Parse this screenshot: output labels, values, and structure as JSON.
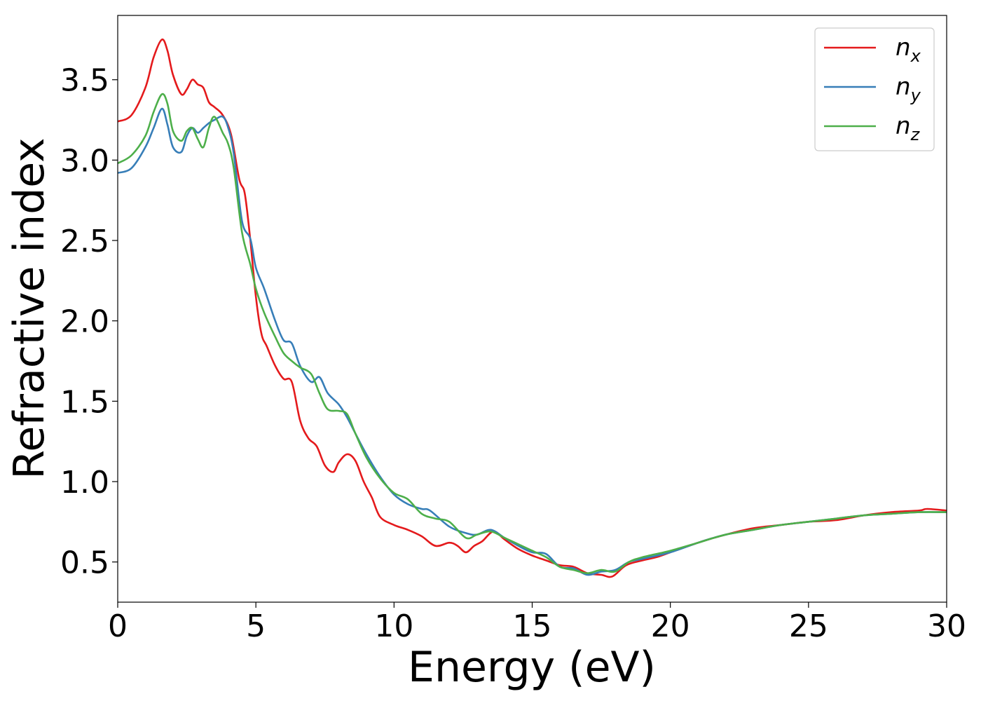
{
  "chart_data": {
    "type": "line",
    "title": "",
    "xlabel": "Energy (eV)",
    "ylabel": "Refractive index",
    "xlim": [
      0,
      30
    ],
    "ylim": [
      0.25,
      3.9
    ],
    "xticks": [
      0,
      5,
      10,
      15,
      20,
      25,
      30
    ],
    "xtick_labels": [
      "0",
      "5",
      "10",
      "15",
      "20",
      "25",
      "30"
    ],
    "yticks": [
      0.5,
      1.0,
      1.5,
      2.0,
      2.5,
      3.0,
      3.5
    ],
    "ytick_labels": [
      "0.5",
      "1.0",
      "1.5",
      "2.0",
      "2.5",
      "3.0",
      "3.5"
    ],
    "grid": false,
    "legend_position": "top-right",
    "series": [
      {
        "name": "n",
        "sub": "x",
        "color": "#e41a1c",
        "x": [
          0,
          0.5,
          1,
          1.3,
          1.6,
          1.8,
          2,
          2.3,
          2.5,
          2.7,
          2.9,
          3.1,
          3.3,
          3.5,
          3.8,
          4.1,
          4.4,
          4.6,
          4.8,
          5,
          5.2,
          5.4,
          5.7,
          6,
          6.3,
          6.6,
          6.9,
          7.2,
          7.5,
          7.8,
          8,
          8.3,
          8.6,
          8.9,
          9.2,
          9.5,
          10,
          10.5,
          11,
          11.5,
          12,
          12.3,
          12.6,
          12.9,
          13.2,
          13.6,
          14,
          14.5,
          15,
          15.5,
          16,
          16.5,
          17,
          17.5,
          17.9,
          18.4,
          19,
          19.5,
          20,
          21,
          22,
          23,
          24,
          25,
          26,
          27,
          28,
          29,
          29.3,
          30
        ],
        "y": [
          3.24,
          3.28,
          3.45,
          3.64,
          3.75,
          3.68,
          3.53,
          3.41,
          3.44,
          3.5,
          3.47,
          3.45,
          3.36,
          3.33,
          3.28,
          3.16,
          2.88,
          2.79,
          2.5,
          2.15,
          1.92,
          1.84,
          1.72,
          1.64,
          1.62,
          1.38,
          1.27,
          1.22,
          1.1,
          1.06,
          1.12,
          1.17,
          1.13,
          1.0,
          0.9,
          0.78,
          0.73,
          0.7,
          0.66,
          0.6,
          0.62,
          0.6,
          0.56,
          0.6,
          0.63,
          0.69,
          0.64,
          0.58,
          0.54,
          0.51,
          0.48,
          0.47,
          0.43,
          0.42,
          0.41,
          0.48,
          0.51,
          0.53,
          0.56,
          0.62,
          0.67,
          0.71,
          0.73,
          0.75,
          0.76,
          0.79,
          0.81,
          0.82,
          0.83,
          0.82
        ]
      },
      {
        "name": "n",
        "sub": "y",
        "color": "#377eb8",
        "x": [
          0,
          0.5,
          1,
          1.3,
          1.6,
          1.8,
          2,
          2.3,
          2.5,
          2.7,
          2.9,
          3.1,
          3.3,
          3.5,
          3.8,
          4,
          4.2,
          4.5,
          4.8,
          5,
          5.3,
          5.7,
          6,
          6.3,
          6.6,
          7,
          7.3,
          7.6,
          8,
          8.3,
          8.6,
          9,
          9.5,
          10,
          10.5,
          11,
          11.3,
          12,
          12.6,
          13,
          13.5,
          14,
          14.5,
          15,
          15.5,
          16,
          16.5,
          17,
          17.5,
          18,
          18.5,
          19,
          20,
          21,
          22,
          23,
          24,
          25,
          26,
          27,
          28,
          29,
          30
        ],
        "y": [
          2.92,
          2.95,
          3.08,
          3.2,
          3.32,
          3.22,
          3.08,
          3.05,
          3.15,
          3.2,
          3.17,
          3.2,
          3.23,
          3.25,
          3.27,
          3.2,
          3.04,
          2.62,
          2.51,
          2.33,
          2.2,
          2.0,
          1.88,
          1.86,
          1.72,
          1.62,
          1.65,
          1.55,
          1.48,
          1.4,
          1.3,
          1.17,
          1.03,
          0.92,
          0.86,
          0.83,
          0.82,
          0.72,
          0.68,
          0.67,
          0.7,
          0.65,
          0.6,
          0.56,
          0.55,
          0.47,
          0.46,
          0.42,
          0.44,
          0.45,
          0.5,
          0.52,
          0.56,
          0.62,
          0.67,
          0.7,
          0.73,
          0.75,
          0.77,
          0.79,
          0.8,
          0.81,
          0.81
        ]
      },
      {
        "name": "n",
        "sub": "z",
        "color": "#4daf4a",
        "x": [
          0,
          0.5,
          1,
          1.3,
          1.6,
          1.8,
          2,
          2.3,
          2.5,
          2.7,
          2.9,
          3.1,
          3.3,
          3.5,
          3.8,
          4,
          4.2,
          4.5,
          4.8,
          5,
          5.3,
          5.7,
          6,
          6.3,
          6.6,
          7,
          7.3,
          7.6,
          8,
          8.3,
          8.6,
          9,
          9.5,
          10,
          10.5,
          11,
          11.5,
          12,
          12.6,
          13,
          13.5,
          14,
          14.5,
          15,
          15.5,
          16,
          16.5,
          17,
          17.5,
          18,
          18.5,
          19,
          20,
          21,
          22,
          23,
          24,
          25,
          26,
          27,
          28,
          29,
          30
        ],
        "y": [
          2.98,
          3.03,
          3.15,
          3.3,
          3.41,
          3.35,
          3.18,
          3.12,
          3.18,
          3.2,
          3.13,
          3.08,
          3.2,
          3.27,
          3.17,
          3.1,
          2.95,
          2.55,
          2.35,
          2.2,
          2.05,
          1.9,
          1.8,
          1.75,
          1.71,
          1.67,
          1.55,
          1.45,
          1.44,
          1.42,
          1.3,
          1.15,
          1.02,
          0.93,
          0.89,
          0.8,
          0.77,
          0.75,
          0.65,
          0.67,
          0.69,
          0.65,
          0.61,
          0.57,
          0.53,
          0.47,
          0.45,
          0.43,
          0.45,
          0.44,
          0.5,
          0.53,
          0.57,
          0.62,
          0.67,
          0.7,
          0.73,
          0.75,
          0.77,
          0.79,
          0.8,
          0.81,
          0.81
        ]
      }
    ]
  }
}
